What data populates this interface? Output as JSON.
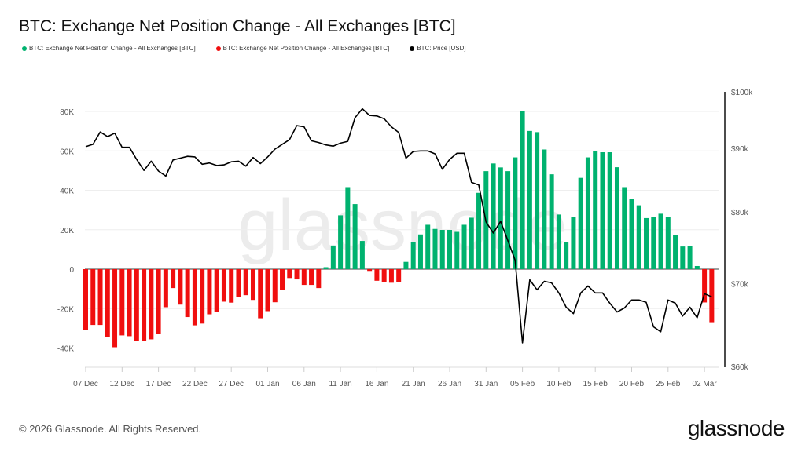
{
  "title": "BTC: Exchange Net Position Change - All Exchanges [BTC]",
  "legend": [
    {
      "label": "BTC: Exchange Net Position Change - All Exchanges [BTC]",
      "color": "#00b26f"
    },
    {
      "label": "BTC: Exchange Net Position Change - All Exchanges [BTC]",
      "color": "#f00f0f"
    },
    {
      "label": "BTC: Price [USD]",
      "color": "#000000"
    }
  ],
  "footer": "© 2026 Glassnode. All Rights Reserved.",
  "logo": "glassnode",
  "watermark": "glassnode",
  "chart_data": {
    "type": "bar+line",
    "title": "BTC: Exchange Net Position Change - All Exchanges [BTC]",
    "start_date": "07 Dec",
    "x_tick_labels": [
      "07 Dec",
      "12 Dec",
      "17 Dec",
      "22 Dec",
      "27 Dec",
      "01 Jan",
      "06 Jan",
      "11 Jan",
      "16 Jan",
      "21 Jan",
      "26 Jan",
      "31 Jan",
      "05 Feb",
      "10 Feb",
      "15 Feb",
      "20 Feb",
      "25 Feb",
      "02 Mar"
    ],
    "left_axis": {
      "ylim": [
        -50000,
        85000
      ],
      "ticks": [
        -40000,
        -20000,
        0,
        20000,
        40000,
        60000,
        80000
      ],
      "tick_labels": [
        "-40K",
        "-20K",
        "0",
        "20K",
        "40K",
        "60K",
        "80K"
      ]
    },
    "right_axis": {
      "scale": "log",
      "ylim": [
        60000,
        100000
      ],
      "ticks": [
        60000,
        70000,
        80000,
        90000,
        100000
      ],
      "tick_labels": [
        "$60k",
        "$70k",
        "$80k",
        "$90k",
        "$100k"
      ]
    },
    "grid": true,
    "legend_position": "top-left",
    "positive_color": "#00b26f",
    "negative_color": "#f00f0f",
    "price_color": "#000000",
    "net_position_change": [
      -30900,
      -28300,
      -28300,
      -34300,
      -39600,
      -33600,
      -34000,
      -36300,
      -36300,
      -35600,
      -32700,
      -19300,
      -9600,
      -18000,
      -24300,
      -28500,
      -27600,
      -22900,
      -21600,
      -16500,
      -17000,
      -14000,
      -13200,
      -15600,
      -24900,
      -21300,
      -16800,
      -10700,
      -4500,
      -5200,
      -8000,
      -8000,
      -9600,
      1000,
      12000,
      27300,
      41600,
      33000,
      14300,
      -900,
      -5900,
      -6500,
      -6900,
      -6500,
      3700,
      13900,
      17600,
      22500,
      20400,
      19900,
      19900,
      18900,
      22500,
      26100,
      38700,
      49700,
      53600,
      51600,
      49700,
      56700,
      80300,
      70100,
      69500,
      60700,
      48100,
      27700,
      13700,
      26500,
      46300,
      56700,
      60000,
      59300,
      59300,
      51700,
      41600,
      35500,
      32400,
      25900,
      26500,
      28100,
      26300,
      17500,
      11500,
      11700,
      1600,
      -16900,
      -26900
    ],
    "price_usd": [
      90300,
      90700,
      92800,
      92000,
      92600,
      90200,
      90200,
      88200,
      86400,
      87900,
      86300,
      85500,
      88100,
      88400,
      88700,
      88600,
      87400,
      87600,
      87200,
      87300,
      87800,
      87900,
      87100,
      88500,
      87500,
      88600,
      89900,
      90700,
      91500,
      93900,
      93700,
      91300,
      91000,
      90600,
      90400,
      90900,
      91200,
      95300,
      96900,
      95700,
      95600,
      95100,
      93700,
      92700,
      88400,
      89500,
      89600,
      89600,
      89100,
      86600,
      88200,
      89200,
      89200,
      84500,
      84100,
      78500,
      76900,
      78600,
      75800,
      73100,
      62700,
      70500,
      69200,
      70300,
      70100,
      68800,
      67000,
      66200,
      68800,
      69700,
      68800,
      68800,
      67500,
      66400,
      66900,
      67900,
      67900,
      67600,
      64600,
      64000,
      67900,
      67500,
      65900,
      67000,
      65700,
      68700,
      68300
    ]
  }
}
